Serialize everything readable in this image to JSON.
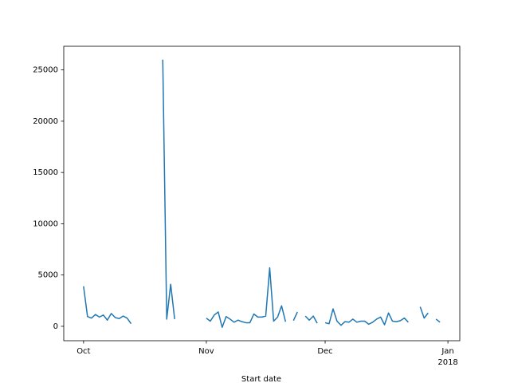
{
  "chart_data": {
    "type": "line",
    "xlabel": "Start date",
    "x": [
      "2017-10-01",
      "2017-10-02",
      "2017-10-03",
      "2017-10-04",
      "2017-10-05",
      "2017-10-06",
      "2017-10-07",
      "2017-10-08",
      "2017-10-09",
      "2017-10-10",
      "2017-10-11",
      "2017-10-12",
      "2017-10-13",
      "2017-10-14",
      "2017-10-15",
      "2017-10-16",
      "2017-10-17",
      "2017-10-18",
      "2017-10-19",
      "2017-10-20",
      "2017-10-21",
      "2017-10-22",
      "2017-10-23",
      "2017-10-24",
      "2017-10-25",
      "2017-10-26",
      "2017-10-27",
      "2017-10-28",
      "2017-10-29",
      "2017-10-30",
      "2017-10-31",
      "2017-11-01",
      "2017-11-02",
      "2017-11-03",
      "2017-11-04",
      "2017-11-05",
      "2017-11-06",
      "2017-11-07",
      "2017-11-08",
      "2017-11-09",
      "2017-11-10",
      "2017-11-11",
      "2017-11-12",
      "2017-11-13",
      "2017-11-14",
      "2017-11-15",
      "2017-11-16",
      "2017-11-17",
      "2017-11-18",
      "2017-11-19",
      "2017-11-20",
      "2017-11-21",
      "2017-11-22",
      "2017-11-23",
      "2017-11-24",
      "2017-11-25",
      "2017-11-26",
      "2017-11-27",
      "2017-11-28",
      "2017-11-29",
      "2017-11-30",
      "2017-12-01",
      "2017-12-02",
      "2017-12-03",
      "2017-12-04",
      "2017-12-05",
      "2017-12-06",
      "2017-12-07",
      "2017-12-08",
      "2017-12-09",
      "2017-12-10",
      "2017-12-11",
      "2017-12-12",
      "2017-12-13",
      "2017-12-14",
      "2017-12-15",
      "2017-12-16",
      "2017-12-17",
      "2017-12-18",
      "2017-12-19",
      "2017-12-20",
      "2017-12-21",
      "2017-12-22",
      "2017-12-23",
      "2017-12-24",
      "2017-12-25",
      "2017-12-26",
      "2017-12-27",
      "2017-12-28",
      "2017-12-29",
      "2017-12-30"
    ],
    "series": [
      {
        "color": "#1f77b4",
        "values": [
          3900,
          950,
          800,
          1150,
          900,
          1100,
          600,
          1250,
          850,
          750,
          1000,
          800,
          250,
          null,
          null,
          null,
          null,
          null,
          null,
          null,
          26000,
          700,
          4100,
          700,
          null,
          null,
          null,
          null,
          null,
          null,
          null,
          800,
          500,
          1100,
          1400,
          -100,
          950,
          700,
          400,
          600,
          450,
          350,
          350,
          1200,
          900,
          900,
          1000,
          5700,
          500,
          900,
          2000,
          450,
          null,
          550,
          1400,
          null,
          1000,
          600,
          1000,
          300,
          null,
          350,
          250,
          1700,
          500,
          100,
          450,
          400,
          700,
          400,
          500,
          500,
          200,
          400,
          700,
          900,
          150,
          1300,
          500,
          450,
          550,
          800,
          400,
          null,
          null,
          1900,
          800,
          1300,
          null,
          700,
          400
        ]
      }
    ],
    "xlim": [
      "2017-09-26",
      "2018-01-04"
    ],
    "xticks": [
      {
        "value": "2017-10-01",
        "label": "Oct"
      },
      {
        "value": "2017-11-01",
        "label": "Nov"
      },
      {
        "value": "2017-12-01",
        "label": "Dec"
      },
      {
        "value": "2018-01-01",
        "label": "Jan\n2018"
      }
    ],
    "ylim": [
      -1405,
      27305
    ],
    "yticks": [
      0,
      5000,
      10000,
      15000,
      20000,
      25000
    ],
    "grid": false
  }
}
